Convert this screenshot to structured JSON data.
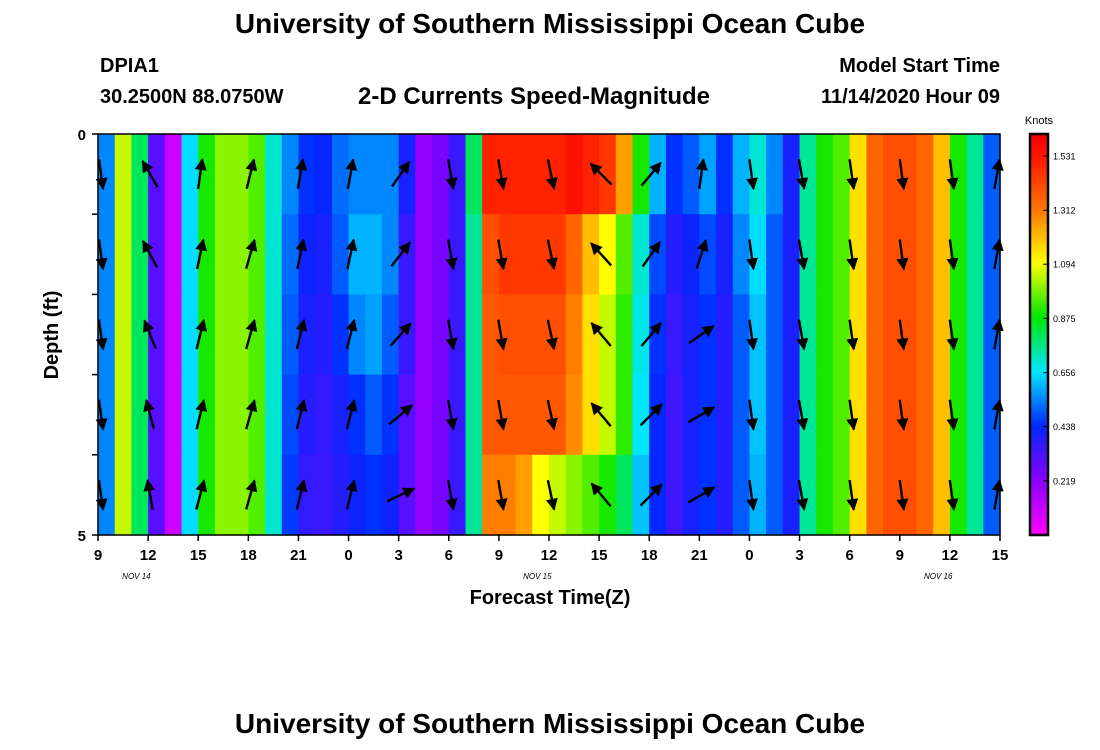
{
  "header": {
    "title": "University of Southern Mississippi Ocean Cube",
    "station_id": "DPIA1",
    "station_coords": "30.2500N 88.0750W",
    "product": "2-D Currents Speed-Magnitude",
    "model_start_label": "Model Start Time",
    "model_start_value": "11/14/2020 Hour 09"
  },
  "footer": {
    "title": "University of Southern Mississippi Ocean Cube"
  },
  "chart_data": {
    "type": "heatmap",
    "xlabel": "Forecast Time(Z)",
    "ylabel": "Depth (ft)",
    "x_tick_labels": [
      "9",
      "12",
      "15",
      "18",
      "21",
      "0",
      "3",
      "6",
      "9",
      "12",
      "15",
      "18",
      "21",
      "0",
      "3",
      "6",
      "9",
      "12",
      "15"
    ],
    "date_labels": [
      "NOV 14",
      "NOV 15",
      "NOV 16"
    ],
    "date_label_positions": [
      1,
      9,
      17
    ],
    "y_tick_labels": [
      "0",
      "5"
    ],
    "ylim": [
      0,
      5
    ],
    "xrange_hours": [
      0,
      54
    ],
    "colorbar": {
      "unit": "Knots",
      "tick_labels": [
        "1.531",
        "1.312",
        "1.094",
        "0.875",
        "0.656",
        "0.438",
        "0.219"
      ],
      "tick_values": [
        1.531,
        1.312,
        1.094,
        0.875,
        0.656,
        0.438,
        0.219
      ],
      "range": [
        0,
        1.62
      ]
    },
    "depth_levels": 5,
    "hours_per_column": 1,
    "speed_grid": [
      [
        0.55,
        1.05,
        0.8,
        0.3,
        0.1,
        0.65,
        0.9,
        1.0,
        1.0,
        0.95,
        0.7,
        0.55,
        0.45,
        0.43,
        0.52,
        0.55,
        0.55,
        0.55,
        0.4,
        0.2,
        0.25,
        0.35,
        0.8,
        1.5,
        1.5,
        1.5,
        1.5,
        1.5,
        1.55,
        1.5,
        1.45,
        1.25,
        0.9,
        0.6,
        0.45,
        0.5,
        0.58,
        0.45,
        0.6,
        0.7,
        0.55,
        0.4,
        0.75,
        0.9,
        0.95,
        1.15,
        1.35,
        1.4,
        1.4,
        1.35,
        1.2,
        0.9,
        0.75,
        0.5
      ],
      [
        0.55,
        1.05,
        0.8,
        0.3,
        0.1,
        0.65,
        0.9,
        1.0,
        1.0,
        0.95,
        0.7,
        0.52,
        0.42,
        0.4,
        0.5,
        0.6,
        0.6,
        0.55,
        0.35,
        0.2,
        0.25,
        0.35,
        0.75,
        1.4,
        1.45,
        1.45,
        1.45,
        1.45,
        1.35,
        1.2,
        1.1,
        0.95,
        0.7,
        0.48,
        0.38,
        0.42,
        0.48,
        0.4,
        0.55,
        0.65,
        0.5,
        0.4,
        0.75,
        0.9,
        0.95,
        1.15,
        1.35,
        1.4,
        1.4,
        1.35,
        1.2,
        0.9,
        0.75,
        0.5
      ],
      [
        0.55,
        1.05,
        0.8,
        0.3,
        0.1,
        0.65,
        0.9,
        1.0,
        1.0,
        0.95,
        0.7,
        0.5,
        0.4,
        0.38,
        0.45,
        0.55,
        0.58,
        0.5,
        0.35,
        0.2,
        0.25,
        0.35,
        0.75,
        1.38,
        1.4,
        1.4,
        1.4,
        1.4,
        1.3,
        1.15,
        1.05,
        0.92,
        0.68,
        0.45,
        0.35,
        0.4,
        0.45,
        0.38,
        0.5,
        0.62,
        0.5,
        0.4,
        0.75,
        0.9,
        0.95,
        1.15,
        1.35,
        1.4,
        1.4,
        1.35,
        1.2,
        0.9,
        0.75,
        0.5
      ],
      [
        0.55,
        1.05,
        0.8,
        0.3,
        0.1,
        0.65,
        0.9,
        1.0,
        1.0,
        0.95,
        0.7,
        0.48,
        0.38,
        0.36,
        0.4,
        0.45,
        0.5,
        0.45,
        0.3,
        0.2,
        0.25,
        0.35,
        0.75,
        1.38,
        1.38,
        1.38,
        1.38,
        1.38,
        1.28,
        1.15,
        1.05,
        0.92,
        0.66,
        0.44,
        0.34,
        0.4,
        0.45,
        0.38,
        0.5,
        0.62,
        0.5,
        0.4,
        0.75,
        0.9,
        0.95,
        1.15,
        1.35,
        1.4,
        1.4,
        1.35,
        1.2,
        0.9,
        0.75,
        0.5
      ],
      [
        0.55,
        1.05,
        0.8,
        0.3,
        0.1,
        0.65,
        0.9,
        1.0,
        1.0,
        0.95,
        0.7,
        0.46,
        0.36,
        0.35,
        0.38,
        0.42,
        0.45,
        0.42,
        0.3,
        0.2,
        0.25,
        0.35,
        0.75,
        1.3,
        1.3,
        1.25,
        1.1,
        1.05,
        1.0,
        0.95,
        0.9,
        0.8,
        0.62,
        0.44,
        0.34,
        0.4,
        0.45,
        0.38,
        0.5,
        0.6,
        0.5,
        0.4,
        0.75,
        0.9,
        0.95,
        1.15,
        1.35,
        1.4,
        1.4,
        1.35,
        1.2,
        0.9,
        0.75,
        0.5
      ]
    ],
    "vector_times_hours": [
      0,
      3,
      6,
      9,
      12,
      15,
      18,
      21,
      24,
      27,
      30,
      33,
      36,
      39,
      42,
      45,
      48,
      51,
      54
    ],
    "vector_depth_rows": [
      0.5,
      1.5,
      2.5,
      3.5,
      4.5
    ],
    "vector_angles_deg": [
      [
        -8,
        -30,
        8,
        14,
        10,
        10,
        35,
        -10,
        -10,
        -12,
        -45,
        40,
        8,
        -8,
        -10,
        -8,
        -8,
        -8,
        10
      ],
      [
        -8,
        -28,
        12,
        16,
        12,
        12,
        38,
        -10,
        -10,
        -12,
        -42,
        35,
        18,
        -8,
        -10,
        -8,
        -8,
        -8,
        10
      ],
      [
        -8,
        -22,
        14,
        16,
        14,
        14,
        42,
        -10,
        -10,
        -12,
        -40,
        40,
        55,
        -8,
        -10,
        -8,
        -8,
        -8,
        10
      ],
      [
        -8,
        -15,
        14,
        16,
        14,
        14,
        50,
        -10,
        -10,
        -12,
        -40,
        45,
        60,
        -8,
        -10,
        -8,
        -8,
        -8,
        10
      ],
      [
        -8,
        -10,
        15,
        16,
        14,
        14,
        65,
        -10,
        -10,
        -12,
        -40,
        45,
        60,
        -8,
        -10,
        -8,
        -8,
        -8,
        10
      ]
    ]
  }
}
